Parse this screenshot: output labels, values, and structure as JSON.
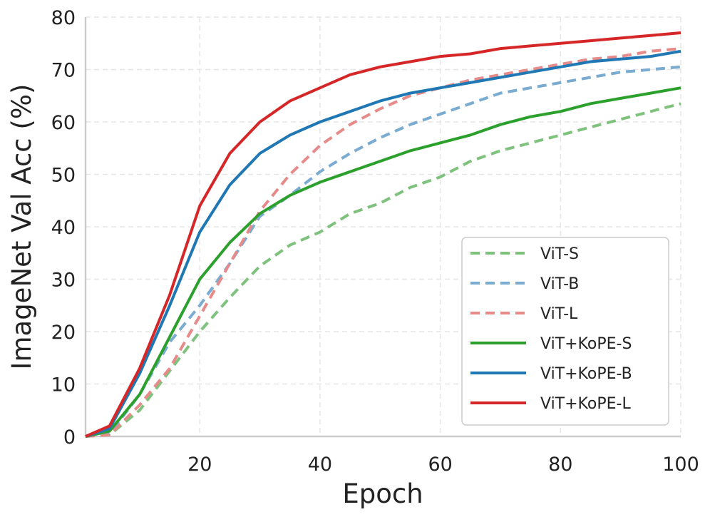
{
  "chart_data": {
    "type": "line",
    "title": "",
    "xlabel": "Epoch",
    "ylabel": "ImageNet Val Acc (%)",
    "xlim": [
      1,
      100
    ],
    "ylim": [
      0,
      80
    ],
    "xticks": [
      20,
      40,
      60,
      80,
      100
    ],
    "yticks": [
      0,
      10,
      20,
      30,
      40,
      50,
      60,
      70,
      80
    ],
    "grid": true,
    "legend_position": "lower-right",
    "x": [
      1,
      5,
      10,
      15,
      20,
      25,
      30,
      35,
      40,
      45,
      50,
      55,
      60,
      65,
      70,
      75,
      80,
      85,
      90,
      95,
      100
    ],
    "series": [
      {
        "name": "ViT-S",
        "style": "dashed",
        "color": "#7fc27d",
        "values": [
          0,
          0.3,
          5,
          12.5,
          20,
          26.5,
          32.5,
          36.5,
          39,
          42.5,
          44.5,
          47.5,
          49.5,
          52.5,
          54.5,
          56,
          57.5,
          59,
          60.5,
          62,
          63.5
        ]
      },
      {
        "name": "ViT-B",
        "style": "dashed",
        "color": "#7aabd0",
        "values": [
          0,
          0.5,
          8,
          18,
          25,
          33,
          42,
          46,
          50.5,
          54,
          57,
          59.5,
          61.5,
          63.5,
          65.5,
          66.5,
          67.5,
          68.5,
          69.5,
          70,
          70.5
        ]
      },
      {
        "name": "ViT-L",
        "style": "dashed",
        "color": "#e68a8a",
        "values": [
          0,
          0.3,
          6,
          13,
          23,
          33,
          43,
          50,
          55.5,
          59.5,
          62.5,
          65,
          66.5,
          68,
          69,
          70,
          71,
          72,
          72.5,
          73.5,
          74
        ]
      },
      {
        "name": "ViT+KoPE-S",
        "style": "solid",
        "color": "#2ca02c",
        "values": [
          0,
          1,
          8,
          19,
          30,
          37,
          42.5,
          46,
          48.5,
          50.5,
          52.5,
          54.5,
          56,
          57.5,
          59.5,
          61,
          62,
          63.5,
          64.5,
          65.5,
          66.5
        ]
      },
      {
        "name": "ViT+KoPE-B",
        "style": "solid",
        "color": "#1f77b4",
        "values": [
          0,
          1.5,
          12,
          25,
          39,
          48,
          54,
          57.5,
          60,
          62,
          64,
          65.5,
          66.5,
          67.5,
          68.5,
          69.5,
          70.5,
          71.5,
          72,
          72.5,
          73.5
        ]
      },
      {
        "name": "ViT+KoPE-L",
        "style": "solid",
        "color": "#d62728",
        "values": [
          0,
          2,
          13,
          27,
          44,
          54,
          60,
          64,
          66.5,
          69,
          70.5,
          71.5,
          72.5,
          73,
          74,
          74.5,
          75,
          75.5,
          76,
          76.5,
          77
        ]
      }
    ]
  }
}
